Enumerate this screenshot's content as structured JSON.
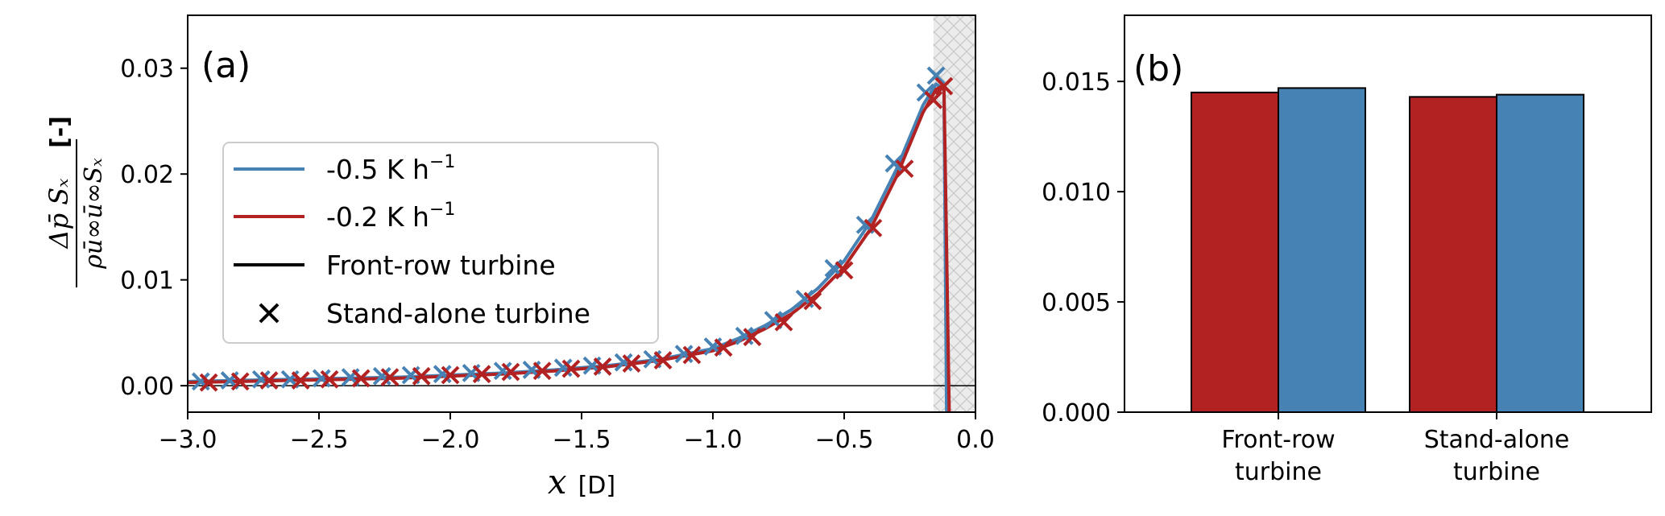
{
  "figure": {
    "panel_a_label": "(a)",
    "panel_b_label": "(b)",
    "a_xlabel_var": "x",
    "a_xlabel_unit": "[D]",
    "a_ylabel_num": "Δp̄ Sₓ",
    "a_ylabel_den": "ρū∞ū∞Sₓ",
    "a_ylabel_unit": "[-]"
  },
  "chart_data": [
    {
      "type": "line",
      "panel": "(a)",
      "xlabel": "x [D]",
      "ylabel": "Δp̄ Sx / (ρ ū∞ ū∞ Sx) [-]",
      "xlim": [
        -3.0,
        0.0
      ],
      "ylim": [
        -0.0025,
        0.035
      ],
      "x_ticks": [
        {
          "v": -3.0,
          "label": "−3.0"
        },
        {
          "v": -2.5,
          "label": "−2.5"
        },
        {
          "v": -2.0,
          "label": "−2.0"
        },
        {
          "v": -1.5,
          "label": "−1.5"
        },
        {
          "v": -1.0,
          "label": "−1.0"
        },
        {
          "v": -0.5,
          "label": "−0.5"
        },
        {
          "v": 0.0,
          "label": "0.0"
        }
      ],
      "y_ticks": [
        {
          "v": 0.0,
          "label": "0.00"
        },
        {
          "v": 0.01,
          "label": "0.01"
        },
        {
          "v": 0.02,
          "label": "0.02"
        },
        {
          "v": 0.03,
          "label": "0.03"
        }
      ],
      "shaded_region": [
        -0.16,
        0.0
      ],
      "grid": false,
      "legend_position": "center-left",
      "legend": [
        {
          "label": "-0.5 K h",
          "sup": "−1",
          "kind": "line",
          "color": "#4682b4"
        },
        {
          "label": "-0.2 K h",
          "sup": "−1",
          "kind": "line",
          "color": "#b22222"
        },
        {
          "label": "Front-row turbine",
          "kind": "line",
          "color": "#000000"
        },
        {
          "label": "Stand-alone turbine",
          "kind": "marker",
          "color": "#000000"
        }
      ],
      "series": [
        {
          "name": "-0.5 K h−1 (front-row)",
          "color": "#4682b4",
          "style": "line",
          "x": [
            -3.0,
            -2.8,
            -2.6,
            -2.4,
            -2.2,
            -2.0,
            -1.8,
            -1.6,
            -1.4,
            -1.2,
            -1.0,
            -0.9,
            -0.8,
            -0.7,
            -0.6,
            -0.5,
            -0.4,
            -0.3,
            -0.2,
            -0.15,
            -0.12,
            -0.11
          ],
          "y": [
            0.0004,
            0.0005,
            0.0006,
            0.0007,
            0.0008,
            0.001,
            0.0012,
            0.0015,
            0.0019,
            0.0025,
            0.0035,
            0.0045,
            0.0057,
            0.0072,
            0.0092,
            0.0118,
            0.0155,
            0.0205,
            0.0265,
            0.0285,
            0.028,
            -0.0025
          ]
        },
        {
          "name": "-0.2 K h−1 (front-row)",
          "color": "#b22222",
          "style": "line",
          "x": [
            -3.0,
            -2.8,
            -2.6,
            -2.4,
            -2.2,
            -2.0,
            -1.8,
            -1.6,
            -1.4,
            -1.2,
            -1.0,
            -0.9,
            -0.8,
            -0.7,
            -0.6,
            -0.5,
            -0.4,
            -0.3,
            -0.2,
            -0.15,
            -0.12,
            -0.1
          ],
          "y": [
            0.0003,
            0.0004,
            0.0005,
            0.0006,
            0.0007,
            0.0009,
            0.0011,
            0.0014,
            0.0018,
            0.0024,
            0.0033,
            0.0042,
            0.0054,
            0.0068,
            0.0087,
            0.0112,
            0.0148,
            0.0198,
            0.0258,
            0.028,
            0.0284,
            -0.0025
          ]
        },
        {
          "name": "-0.5 K h−1 (stand-alone)",
          "color": "#4682b4",
          "style": "marker",
          "x": [
            -2.95,
            -2.84,
            -2.72,
            -2.61,
            -2.49,
            -2.38,
            -2.26,
            -2.15,
            -2.03,
            -1.92,
            -1.8,
            -1.69,
            -1.57,
            -1.46,
            -1.34,
            -1.23,
            -1.11,
            -1.0,
            -0.88,
            -0.77,
            -0.65,
            -0.54,
            -0.42,
            -0.31,
            -0.19,
            -0.15
          ],
          "y": [
            0.0004,
            0.0005,
            0.0006,
            0.0006,
            0.0007,
            0.0008,
            0.0009,
            0.001,
            0.0011,
            0.0012,
            0.0014,
            0.0015,
            0.0017,
            0.0019,
            0.0022,
            0.0025,
            0.003,
            0.0037,
            0.0047,
            0.0062,
            0.0082,
            0.0111,
            0.0152,
            0.021,
            0.0277,
            0.0293
          ]
        },
        {
          "name": "-0.2 K h−1 (stand-alone)",
          "color": "#b22222",
          "style": "marker",
          "x": [
            -2.92,
            -2.8,
            -2.69,
            -2.57,
            -2.46,
            -2.34,
            -2.23,
            -2.11,
            -2.0,
            -1.88,
            -1.77,
            -1.65,
            -1.54,
            -1.42,
            -1.31,
            -1.19,
            -1.08,
            -0.96,
            -0.85,
            -0.73,
            -0.62,
            -0.5,
            -0.39,
            -0.27,
            -0.16,
            -0.12
          ],
          "y": [
            0.0003,
            0.0004,
            0.0005,
            0.0005,
            0.0006,
            0.0007,
            0.0008,
            0.0009,
            0.001,
            0.0011,
            0.0013,
            0.0014,
            0.0016,
            0.0018,
            0.0021,
            0.0024,
            0.0029,
            0.0036,
            0.0046,
            0.006,
            0.008,
            0.0109,
            0.0149,
            0.0205,
            0.027,
            0.0283
          ]
        }
      ]
    },
    {
      "type": "bar",
      "panel": "(b)",
      "categories": [
        "Front-row turbine",
        "Stand-alone turbine"
      ],
      "category_lines": [
        [
          "Front-row",
          "turbine"
        ],
        [
          "Stand-alone",
          "turbine"
        ]
      ],
      "ylim": [
        0.0,
        0.018
      ],
      "y_ticks": [
        {
          "v": 0.0,
          "label": "0.000"
        },
        {
          "v": 0.005,
          "label": "0.005"
        },
        {
          "v": 0.01,
          "label": "0.010"
        },
        {
          "v": 0.015,
          "label": "0.015"
        }
      ],
      "grid": false,
      "series": [
        {
          "name": "-0.2 K h−1",
          "color": "#b22222",
          "values": [
            0.0145,
            0.0143
          ]
        },
        {
          "name": "-0.5 K h−1",
          "color": "#4682b4",
          "values": [
            0.0147,
            0.0144
          ]
        }
      ]
    }
  ]
}
